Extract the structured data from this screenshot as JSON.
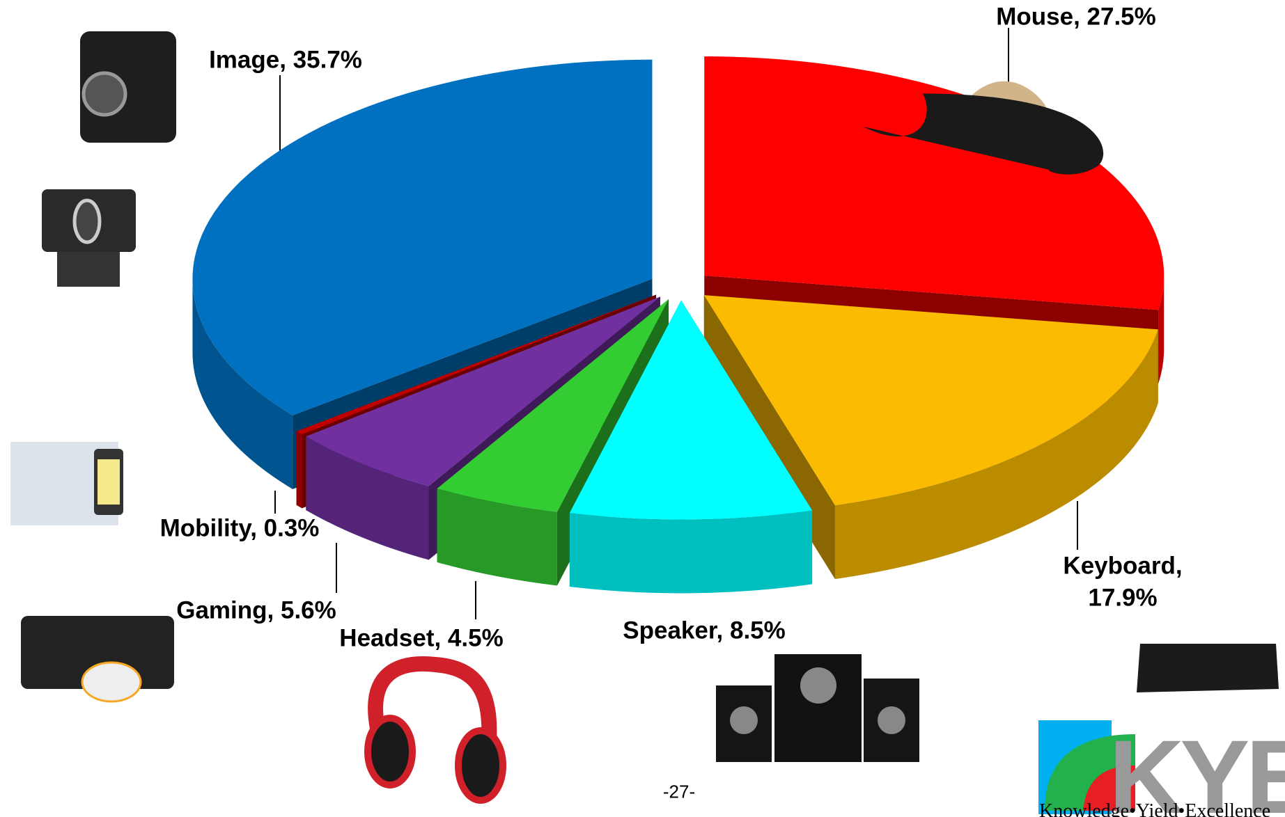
{
  "chart_data": {
    "type": "pie3d",
    "values": [
      27.5,
      17.9,
      8.5,
      4.5,
      5.6,
      0.3,
      35.7
    ],
    "value_labels": [
      "Mouse, 27.5%",
      "Keyboard, 17.9%",
      "Speaker, 8.5%",
      "Headset, 4.5%",
      "Gaming, 5.6%",
      "Mobility, 0.3%",
      "Image, 35.7%"
    ],
    "colors": [
      "#ff0000",
      "#fbbb00",
      "#00ffff",
      "#33cc33",
      "#7030a0",
      "#c00000",
      "#0070c0"
    ]
  },
  "page_number": "-27-",
  "logo": {
    "text": "KYE",
    "tagline": "Knowledge•Yield•Excellence"
  }
}
